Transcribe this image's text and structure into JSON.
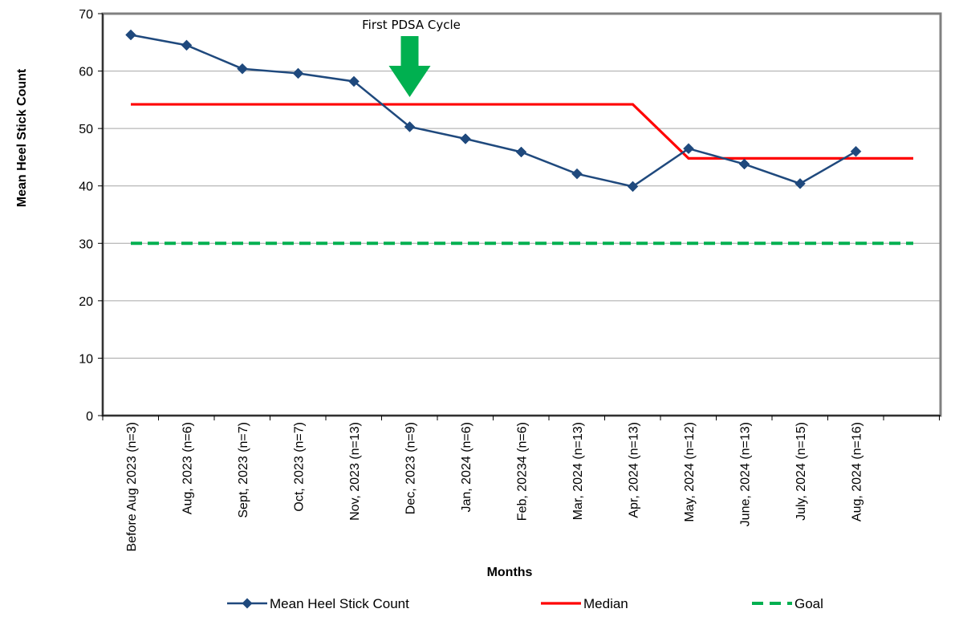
{
  "chart_data": {
    "type": "line",
    "title": "",
    "xlabel": "Months",
    "ylabel": "Mean Heel Stick Count",
    "ylim": [
      0,
      70
    ],
    "yticks": [
      0,
      10,
      20,
      30,
      40,
      50,
      60,
      70
    ],
    "grid": true,
    "legend_position": "bottom",
    "categories": [
      "Before Aug 2023 (n=3)",
      "Aug, 2023 (n=6)",
      "Sept, 2023 (n=7)",
      "Oct, 2023 (n=7)",
      "Nov, 2023 (n=13)",
      "Dec, 2023 (n=9)",
      "Jan, 2024 (n=6)",
      "Feb, 20234 (n=6)",
      "Mar, 2024 (n=13)",
      "Apr, 2024 (n=13)",
      "May, 2024 (n=12)",
      "June, 2024 (n=13)",
      "July, 2024 (n=15)",
      "Aug, 2024 (n=16)"
    ],
    "series": [
      {
        "name": "Mean Heel Stick Count",
        "color": "#1f497d",
        "marker": "diamond",
        "values": [
          66.3,
          64.5,
          60.4,
          59.6,
          58.2,
          50.3,
          48.2,
          45.9,
          42.1,
          39.9,
          46.5,
          43.8,
          40.4,
          46.0
        ]
      },
      {
        "name": "Median",
        "color": "#ff0000",
        "style": "solid",
        "points": [
          {
            "x": "Before Aug 2023 (n=3)",
            "y": 54.2
          },
          {
            "x": "Apr, 2024 (n=13)",
            "y": 54.2
          },
          {
            "x": "May, 2024 (n=12)",
            "y": 44.8
          },
          {
            "x": "end",
            "y": 44.8
          }
        ]
      },
      {
        "name": "Goal",
        "color": "#00b050",
        "style": "dashed",
        "value": 30
      }
    ],
    "annotations": [
      {
        "text": "First PDSA Cycle",
        "category": "Dec, 2023 (n=9)",
        "arrow_color": "#00b050"
      }
    ]
  }
}
